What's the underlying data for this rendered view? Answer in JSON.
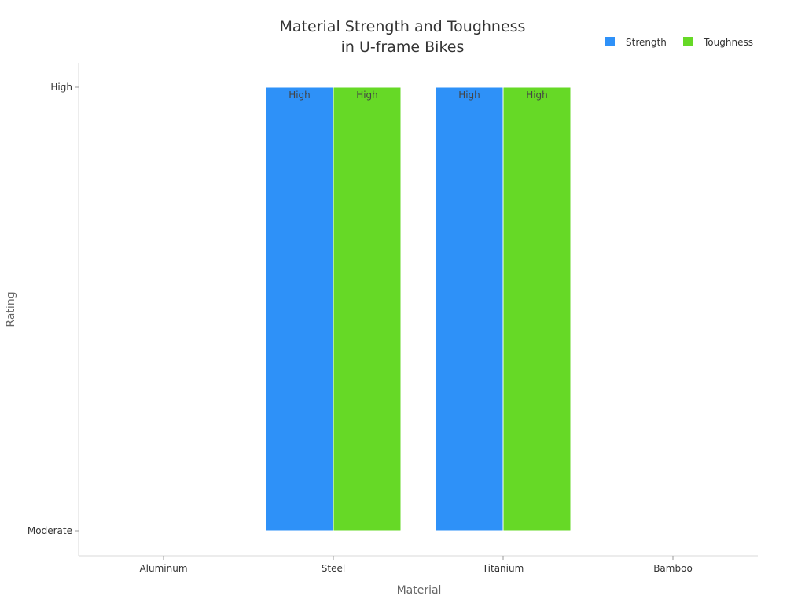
{
  "chart_data": {
    "type": "bar",
    "title_lines": [
      "Material Strength and Toughness",
      "in U-frame Bikes"
    ],
    "xlabel": "Material",
    "ylabel": "Rating",
    "categories": [
      "Aluminum",
      "Steel",
      "Titanium",
      "Bamboo"
    ],
    "y_levels": [
      "Moderate",
      "High"
    ],
    "series": [
      {
        "name": "Strength",
        "color": "#2e91f8",
        "values": [
          null,
          "High",
          "High",
          null
        ],
        "labels": [
          "",
          "High",
          "High",
          ""
        ]
      },
      {
        "name": "Toughness",
        "color": "#66d926",
        "values": [
          null,
          "High",
          "High",
          null
        ],
        "labels": [
          "",
          "High",
          "High",
          ""
        ]
      }
    ],
    "bar_base": "Moderate",
    "legend_position": "top-right",
    "grid": false
  }
}
